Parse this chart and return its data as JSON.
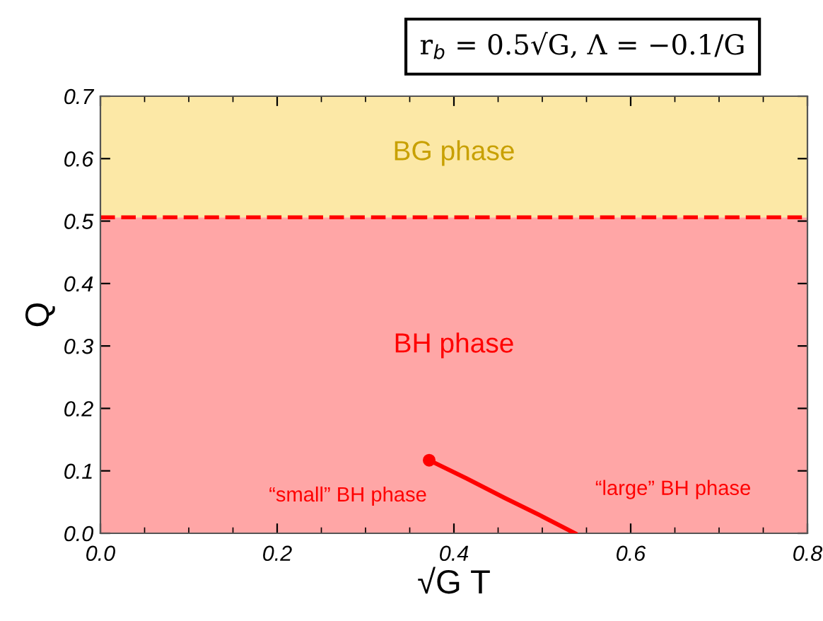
{
  "chart_data": {
    "type": "line",
    "title": "r$_{b}$ = 0.5√G, Λ = −0.1/G",
    "xlabel": "√G T",
    "ylabel": "Q",
    "xlim": [
      0,
      0.8
    ],
    "ylim": [
      0,
      0.7
    ],
    "xticks": [
      {
        "value": 0,
        "label": "0.0"
      },
      {
        "value": 0.05,
        "label": null
      },
      {
        "value": 0.1,
        "label": null
      },
      {
        "value": 0.15,
        "label": null
      },
      {
        "value": 0.2,
        "label": "0.2"
      },
      {
        "value": 0.25,
        "label": null
      },
      {
        "value": 0.3,
        "label": null
      },
      {
        "value": 0.35,
        "label": null
      },
      {
        "value": 0.4,
        "label": "0.4"
      },
      {
        "value": 0.45,
        "label": null
      },
      {
        "value": 0.5,
        "label": null
      },
      {
        "value": 0.55,
        "label": null
      },
      {
        "value": 0.6,
        "label": "0.6"
      },
      {
        "value": 0.65,
        "label": null
      },
      {
        "value": 0.7,
        "label": null
      },
      {
        "value": 0.75,
        "label": null
      },
      {
        "value": 0.8,
        "label": "0.8"
      }
    ],
    "yticks": [
      {
        "value": 0,
        "label": "0.0"
      },
      {
        "value": 0.1,
        "label": "0.1"
      },
      {
        "value": 0.2,
        "label": "0.2"
      },
      {
        "value": 0.3,
        "label": "0.3"
      },
      {
        "value": 0.4,
        "label": "0.4"
      },
      {
        "value": 0.5,
        "label": "0.5"
      },
      {
        "value": 0.6,
        "label": "0.6"
      },
      {
        "value": 0.7,
        "label": "0.7"
      }
    ],
    "bands": [
      {
        "axis": "y",
        "from": 0,
        "to": 0.506,
        "color": "#ffa6a6"
      },
      {
        "axis": "y",
        "from": 0.506,
        "to": 0.7,
        "color": "#fce8a6"
      }
    ],
    "ref_lines": [
      {
        "axis": "y",
        "value": 0.506,
        "color": "#ff0000",
        "line_style": "dashed"
      }
    ],
    "series": [
      {
        "color": "#ff0000",
        "x": [
          0.372,
          0.414,
          0.457,
          0.5,
          0.537
        ],
        "values": [
          0.117,
          0.088,
          0.057,
          0.027,
          0
        ]
      },
      {
        "type": "scatter",
        "color": "#ff0000",
        "marker": "circle",
        "x": [
          0.372
        ],
        "values": [
          0.117
        ]
      }
    ],
    "annotations": [
      "BG phase",
      "BH phase",
      "“small” BH phase",
      "“large” BH phase"
    ],
    "grid": false,
    "legend": false
  }
}
